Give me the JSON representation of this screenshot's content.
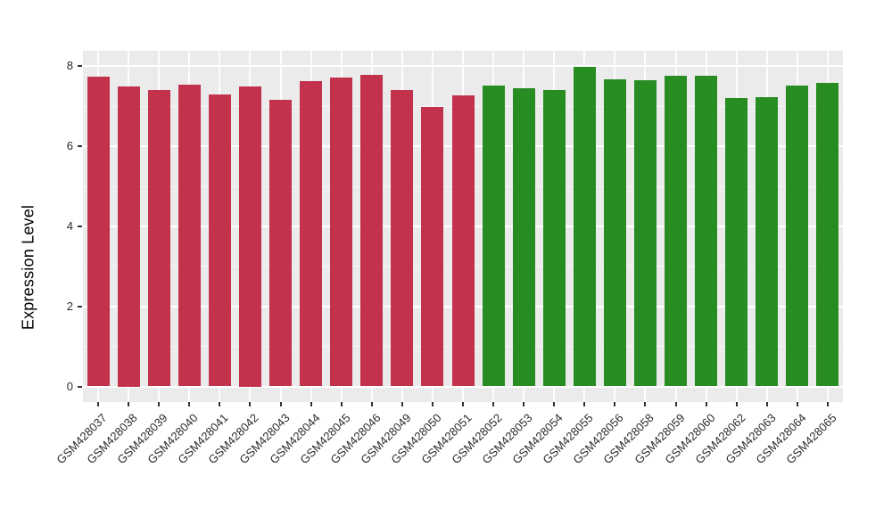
{
  "chart_data": {
    "type": "bar",
    "title": "",
    "xlabel": "",
    "ylabel": "Expression Level",
    "ylim": [
      0,
      8.39
    ],
    "yticks": [
      0,
      2,
      4,
      6,
      8
    ],
    "yticklabels": [
      "0",
      "2",
      "4",
      "6",
      "8"
    ],
    "minor_yticks": [
      1,
      3,
      5,
      7
    ],
    "grid": "major and minor white gridlines on gray panel",
    "legend": "none",
    "categories": [
      "GSM428037",
      "GSM428038",
      "GSM428039",
      "GSM428040",
      "GSM428041",
      "GSM428042",
      "GSM428043",
      "GSM428044",
      "GSM428045",
      "GSM428046",
      "GSM428049",
      "GSM428050",
      "GSM428051",
      "GSM428052",
      "GSM428053",
      "GSM428054",
      "GSM428055",
      "GSM428056",
      "GSM428058",
      "GSM428059",
      "GSM428060",
      "GSM428062",
      "GSM428063",
      "GSM428064",
      "GSM428065"
    ],
    "values": [
      7.74,
      7.5,
      7.41,
      7.55,
      7.29,
      7.5,
      7.16,
      7.63,
      7.72,
      7.78,
      7.4,
      6.99,
      7.27,
      7.52,
      7.44,
      7.4,
      7.98,
      7.68,
      7.66,
      7.77,
      7.76,
      7.2,
      7.22,
      7.52,
      7.58
    ],
    "groups": [
      "group1",
      "group1",
      "group1",
      "group1",
      "group1",
      "group1",
      "group1",
      "group1",
      "group1",
      "group1",
      "group1",
      "group1",
      "group1",
      "group2",
      "group2",
      "group2",
      "group2",
      "group2",
      "group2",
      "group2",
      "group2",
      "group2",
      "group2",
      "group2",
      "group2"
    ],
    "group_colors": {
      "group1": "#C3324D",
      "group2": "#278C22"
    },
    "colors": {
      "panel_background": "#EBEBEB",
      "figure_background": "#FFFFFF",
      "gridline": "#FFFFFF",
      "tick_mark": "#333333",
      "axis_text": "#2B2B2B",
      "axis_title": "#000000"
    }
  }
}
